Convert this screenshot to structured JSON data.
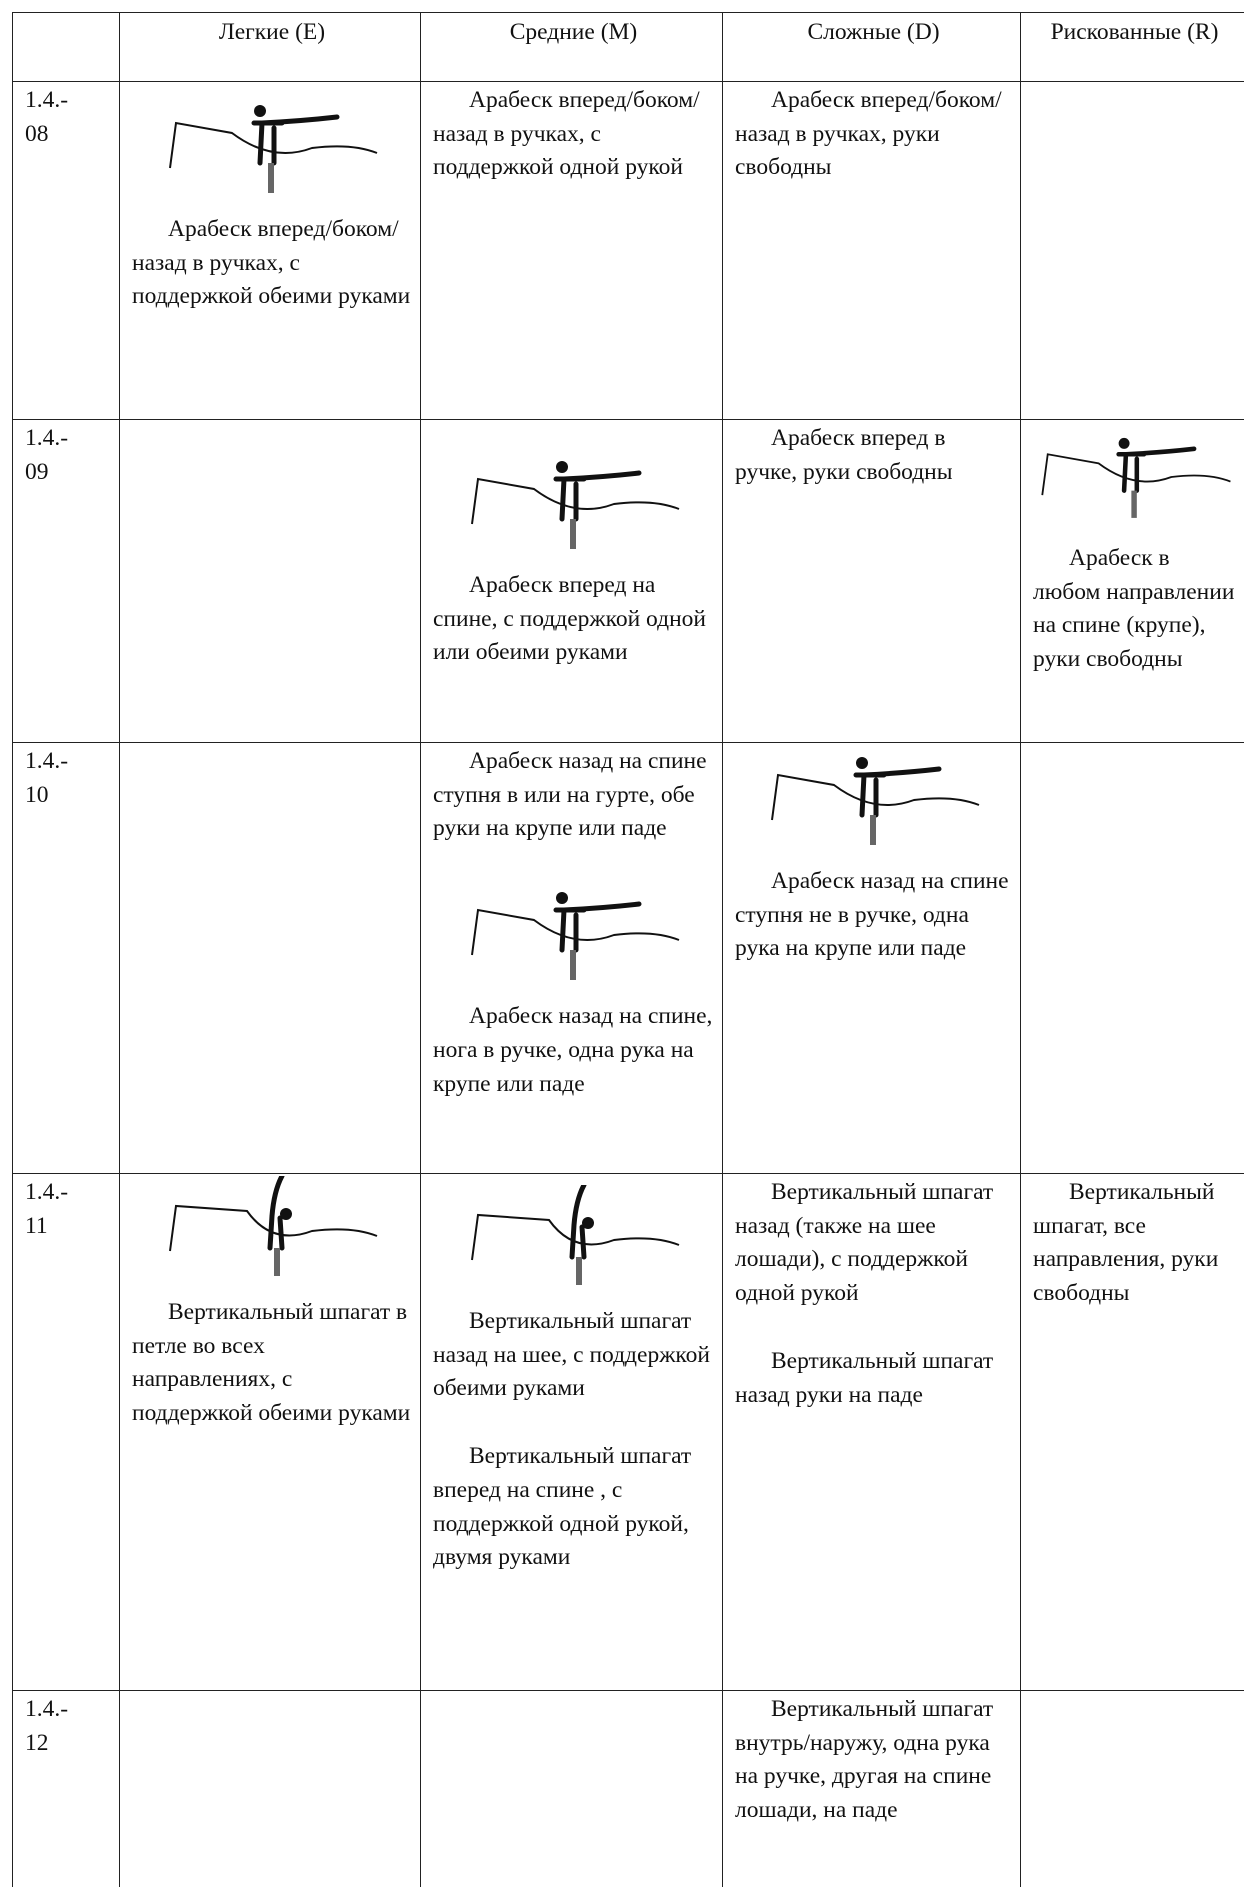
{
  "table": {
    "header": [
      "",
      "Легкие (E)",
      "Средние (M)",
      "Сложные (D)",
      "Рискованные (R)"
    ],
    "rows": [
      {
        "id": [
          "1.4.-",
          "08"
        ],
        "E": [
          "Арабеск вперед/боком/назад в ручках, с поддержкой обеими руками"
        ],
        "M": [
          "Арабеск вперед/боком/назад в ручках, с поддержкой одной рукой"
        ],
        "D": [
          "Арабеск вперед/боком/назад в ручках, руки свободны"
        ],
        "R": []
      },
      {
        "id": [
          "1.4.-",
          "09"
        ],
        "E": [],
        "M": [
          "Арабеск вперед на спине, с поддержкой одной или обеими руками"
        ],
        "D": [
          "Арабеск вперед в ручке, руки свободны"
        ],
        "R": [
          "Арабеск в любом направлении на спине (крупе), руки свободны"
        ]
      },
      {
        "id": [
          "1.4.-",
          "10"
        ],
        "E": [],
        "M": [
          "Арабеск назад на спине ступня в или на гурте, обе руки на крупе или паде",
          "Арабеск назад на спине, нога в ручке, одна рука на крупе или паде"
        ],
        "D": [
          "Арабеск назад на спине ступня не в ручке, одна рука на крупе или паде"
        ],
        "R": []
      },
      {
        "id": [
          "1.4.-",
          "11"
        ],
        "E": [
          "Вертикальный шпагат в петле во всех направлениях, с поддержкой обеими руками"
        ],
        "M": [
          "Вертикальный шпагат назад на шее, с поддержкой обеими руками",
          "Вертикальный шпагат вперед на спине , с поддержкой одной рукой, двумя руками"
        ],
        "D": [
          "Вертикальный шпагат назад (также на шее лошади), с поддержкой одной рукой",
          "Вертикальный шпагат назад руки на паде"
        ],
        "R": [
          "Вертикальный шпагат, все направления, руки свободны"
        ]
      },
      {
        "id": [
          "1.4.-",
          "12"
        ],
        "E": [],
        "M": [],
        "D": [
          "Вертикальный шпагат внутрь/наружу, одна рука на ручке, другая на спине лошади, на паде"
        ],
        "R": []
      }
    ]
  }
}
